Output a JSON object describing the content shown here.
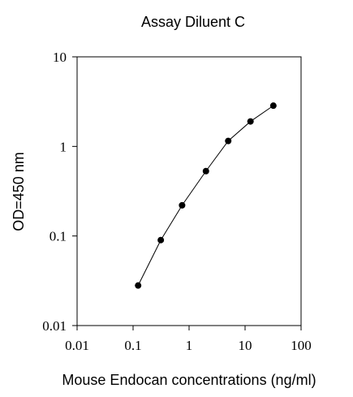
{
  "chart_data": {
    "type": "line",
    "title": "Assay Diluent C",
    "xlabel": "Mouse Endocan concentrations (ng/ml)",
    "ylabel": "OD=450 nm",
    "xscale": "log",
    "yscale": "log",
    "xlim": [
      0.01,
      100
    ],
    "ylim": [
      0.01,
      10
    ],
    "grid": false,
    "x_ticks": [
      "0.01",
      "0.1",
      "1",
      "10",
      "100"
    ],
    "y_ticks": [
      "0.01",
      "0.1",
      "1",
      "10"
    ],
    "series": [
      {
        "x": [
          0.123,
          0.3125,
          0.75,
          2.0,
          5.0,
          12.5,
          32.0
        ],
        "values": [
          0.028,
          0.09,
          0.22,
          0.53,
          1.15,
          1.9,
          2.85
        ],
        "marker": "filled-circle",
        "color": "#000000"
      }
    ]
  }
}
